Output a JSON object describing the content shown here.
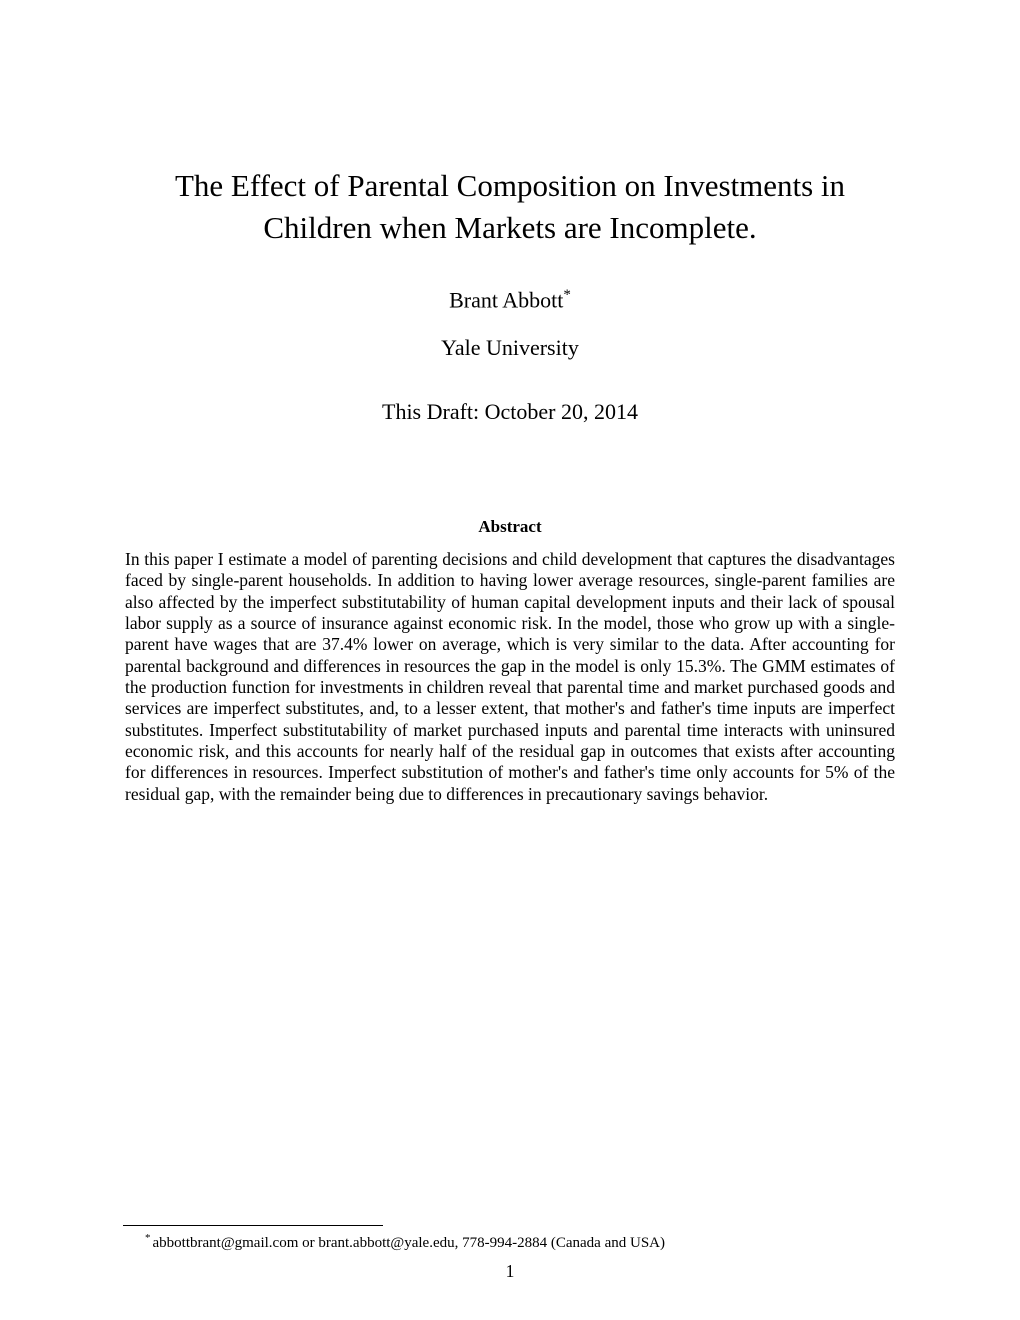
{
  "title": "The Effect of Parental Composition on Investments in Children when Markets are Incomplete.",
  "author": "Brant Abbott",
  "author_marker": "*",
  "affiliation": "Yale University",
  "draft_date": "This Draft: October 20, 2014",
  "abstract_heading": "Abstract",
  "abstract_text": "In this paper I estimate a model of parenting decisions and child development that captures the disadvantages faced by single-parent households. In addition to having lower average resources, single-parent families are also affected by the imperfect substitutability of human capital development inputs and their lack of spousal labor supply as a source of insurance against economic risk. In the model, those who grow up with a single-parent have wages that are 37.4% lower on average, which is very similar to the data. After accounting for parental background and differences in resources the gap in the model is only 15.3%. The GMM estimates of the production function for investments in children reveal that parental time and market purchased goods and services are imperfect substitutes, and, to a lesser extent, that mother's and father's time inputs are imperfect substitutes. Imperfect substitutability of market purchased inputs and parental time interacts with uninsured economic risk, and this accounts for nearly half of the residual gap in outcomes that exists after accounting for differences in resources. Imperfect substitution of mother's and father's time only accounts for 5% of the residual gap, with the remainder being due to differences in precautionary savings behavior.",
  "footnote_marker": "*",
  "footnote_text": "abbottbrant@gmail.com or brant.abbott@yale.edu, 778-994-2884 (Canada and USA)",
  "page_number": "1",
  "colors": {
    "background": "#ffffff",
    "text": "#000000"
  },
  "fonts": {
    "title_size": 31,
    "author_size": 22,
    "body_size": 17.5,
    "abstract_heading_size": 17,
    "footnote_size": 15
  }
}
